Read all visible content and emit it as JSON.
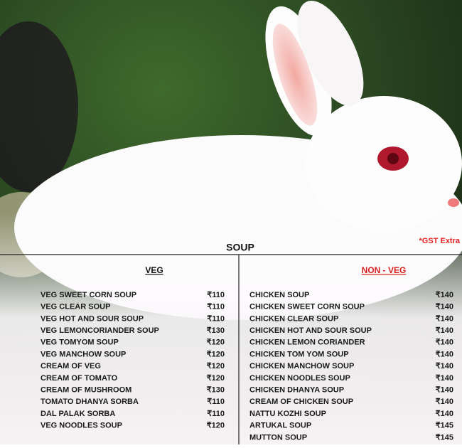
{
  "menu": {
    "title": "SOUP",
    "note": "*GST Extra",
    "veg": {
      "heading": "VEG",
      "items": [
        [
          "VEG SWEET CORN SOUP",
          "₹110"
        ],
        [
          "VEG CLEAR SOUP",
          "₹110"
        ],
        [
          "VEG HOT AND SOUR SOUP",
          "₹110"
        ],
        [
          "VEG LEMONCORIANDER SOUP",
          "₹130"
        ],
        [
          "VEG TOMYOM SOUP",
          "₹120"
        ],
        [
          "VEG MANCHOW SOUP",
          "₹120"
        ],
        [
          "CREAM OF VEG",
          "₹120"
        ],
        [
          "CREAM OF TOMATO",
          "₹120"
        ],
        [
          "CREAM OF MUSHROOM",
          "₹130"
        ],
        [
          "TOMATO DHANYA SORBA",
          "₹110"
        ],
        [
          "DAL PALAK SORBA",
          "₹110"
        ],
        [
          "VEG NOODLES SOUP",
          "₹120"
        ]
      ]
    },
    "nonveg": {
      "heading": "NON - VEG",
      "items": [
        [
          "CHICKEN SOUP",
          "₹140"
        ],
        [
          "CHICKEN SWEET CORN SOUP",
          "₹140"
        ],
        [
          "CHICKEN CLEAR SOUP",
          "₹140"
        ],
        [
          "CHICKEN HOT AND SOUR SOUP",
          "₹140"
        ],
        [
          "CHICKEN LEMON CORIANDER",
          "₹140"
        ],
        [
          "CHICKEN TOM YOM SOUP",
          "₹140"
        ],
        [
          "CHICKEN MANCHOW SOUP",
          "₹140"
        ],
        [
          "CHICKEN NOODLES SOUP",
          "₹140"
        ],
        [
          "CHICKEN DHANYA SOUP",
          "₹140"
        ],
        [
          "CREAM OF CHICKEN SOUP",
          "₹140"
        ],
        [
          "NATTU KOZHI SOUP",
          "₹140"
        ],
        [
          "ARTUKAL SOUP",
          "₹145"
        ],
        [
          "MUTTON SOUP",
          "₹145"
        ]
      ]
    }
  }
}
